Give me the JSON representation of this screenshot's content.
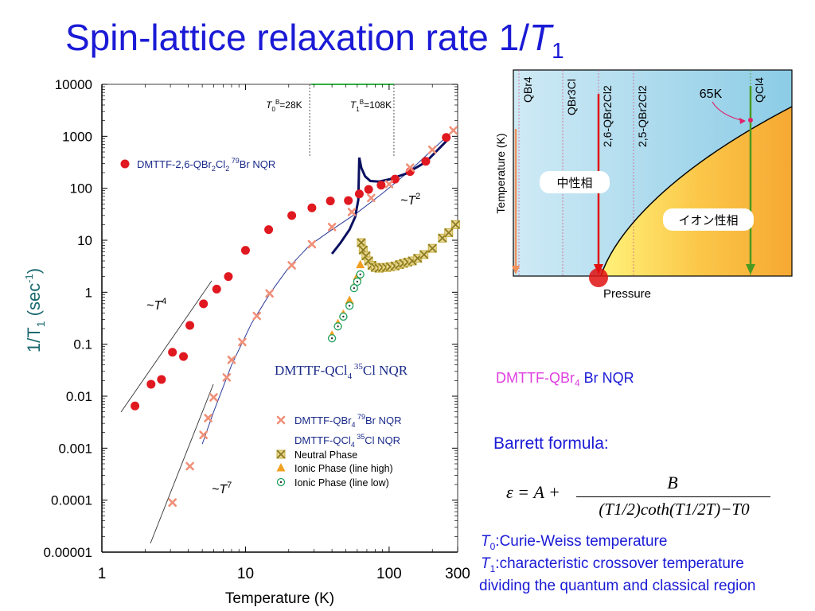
{
  "slide": {
    "title_main": "Spin-lattice relaxation rate 1/",
    "title_T": "T",
    "title_sub": "1",
    "brnqr": {
      "compound": "DMTTF-QBr",
      "sub": "4",
      "rest": " Br NQR"
    },
    "barrett_heading": "Barrett formula:",
    "formula": {
      "lhs": "ε = A +",
      "numerator": "B",
      "denominator": "(T1/2)coth(T1/2T)−T0"
    },
    "defs": [
      {
        "sym": "T",
        "sub": "0",
        "text": "Curie-Weiss temperature"
      },
      {
        "sym": "T",
        "sub": "1",
        "text": "characteristic crossover temperature"
      },
      {
        "sym": "",
        "sub": "",
        "text": "dividing the quantum and classical region"
      }
    ]
  },
  "phase_diagram": {
    "xlabel": "Pressure",
    "ylabel": "Temperature (K)",
    "compounds": [
      "QBr4",
      "QBr3Cl",
      "2,6-QBr2Cl2",
      "2,5-QBr2Cl2",
      "QCl4"
    ],
    "neutral_label": "中性相",
    "ionic_label": "イオン性相",
    "temp_label": "65K",
    "colors": {
      "neutral": "#a8d8ec",
      "ionic": "#f6a833",
      "arrow_red": "#e01010",
      "arrow_green": "#4a9a20",
      "arrow_orange": "#f0905a"
    }
  },
  "chart_data": {
    "type": "scatter",
    "xscale": "log",
    "yscale": "log",
    "xlim": [
      1,
      300
    ],
    "ylim": [
      1e-05,
      10000
    ],
    "xlabel": "Temperature (K)",
    "ylabel": "1/T",
    "ylabel_sub": "1",
    "ylabel_unit": " (sec",
    "ylabel_sup": "-1",
    "ylabel_end": ")",
    "xticks": [
      "1",
      "10",
      "100",
      "300"
    ],
    "yticks": [
      "10000",
      "1000",
      "100",
      "10",
      "1",
      "0.1",
      "0.01",
      "0.001",
      "0.0001",
      "0.00001"
    ],
    "vlines": [
      {
        "x": 28,
        "label_T": "T",
        "label_sub": "0",
        "label_sup": "B",
        "label_rest": "=28K"
      },
      {
        "x": 108,
        "label_T": "T",
        "label_sub": "1",
        "label_sup": "B",
        "label_rest": "=108K"
      }
    ],
    "series": [
      {
        "name": "DMTTF-2,6-QBr2Cl2 79Br NQR",
        "legend_text": "DMTTF-2,6-QBr",
        "legend_sub1": "2",
        "legend_mid": "Cl",
        "legend_sub2": "2",
        "legend_sup": " 79",
        "legend_end": "Br NQR",
        "marker": "circle",
        "color": "#e01820",
        "x": [
          1.7,
          2.2,
          2.6,
          3.1,
          3.7,
          4.1,
          5.1,
          6.3,
          7.6,
          10,
          14.5,
          21,
          29,
          39,
          52,
          62,
          72,
          88,
          110,
          140,
          180,
          250
        ],
        "y": [
          0.0065,
          0.017,
          0.021,
          0.07,
          0.058,
          0.23,
          0.6,
          1.15,
          2.0,
          6.4,
          16,
          30,
          42,
          57,
          58,
          78,
          95,
          115,
          150,
          210,
          330,
          950
        ]
      },
      {
        "name": "DMTTF-QBr4 79Br NQR",
        "legend_text": "DMTTF-QBr",
        "legend_sub1": "4",
        "legend_sup": " 79",
        "legend_end": "Br NQR",
        "marker": "x",
        "color": "#f09078",
        "x": [
          3.1,
          4.1,
          5.1,
          5.5,
          6.0,
          7.4,
          8.0,
          9.5,
          12,
          14.7,
          21,
          29,
          40,
          55,
          75,
          100,
          140,
          200,
          280
        ],
        "y": [
          9e-05,
          0.00045,
          0.0018,
          0.0038,
          0.0095,
          0.023,
          0.05,
          0.11,
          0.35,
          0.95,
          3.3,
          8.4,
          18,
          35,
          65,
          120,
          250,
          550,
          1300
        ]
      },
      {
        "name": "Neutral Phase",
        "marker": "box-x",
        "color": "#c8b040",
        "x": [
          64,
          66,
          69,
          72,
          76,
          80,
          85,
          90,
          96,
          102,
          110,
          118,
          126,
          135,
          145,
          158,
          175,
          200,
          235,
          260,
          290
        ],
        "y": [
          9,
          6.5,
          5,
          4,
          3.3,
          3.0,
          2.9,
          3.0,
          3.0,
          3.1,
          3.2,
          3.4,
          3.6,
          3.8,
          4.0,
          4.5,
          5.3,
          7.0,
          11,
          14,
          20
        ]
      },
      {
        "name": "Ionic Phase (line high)",
        "marker": "triangle",
        "color": "#f0a020",
        "x": [
          40,
          44,
          48,
          53,
          57,
          60,
          63
        ],
        "y": [
          0.15,
          0.25,
          0.38,
          0.7,
          1.3,
          2.0,
          3.4
        ]
      },
      {
        "name": "Ionic Phase (line low)",
        "marker": "dot-circle",
        "color": "#20a060",
        "x": [
          40,
          44,
          48,
          53,
          57,
          60,
          63
        ],
        "y": [
          0.13,
          0.22,
          0.34,
          0.55,
          1.2,
          1.6,
          2.2
        ]
      }
    ],
    "legend_qcl4": {
      "text": "DMTTF-QCl",
      "sub": "4",
      "sup": " 35",
      "end": "Cl NQR"
    },
    "annotations": [
      {
        "kind": "power",
        "base": "~T",
        "exp": "4"
      },
      {
        "kind": "power",
        "base": "~T",
        "exp": "7"
      },
      {
        "kind": "power",
        "base": "~T",
        "exp": "2"
      },
      {
        "kind": "label",
        "text": "DMTTF-QCl",
        "sub": "4",
        "sup": " 35",
        "end": "Cl NQR"
      }
    ]
  }
}
